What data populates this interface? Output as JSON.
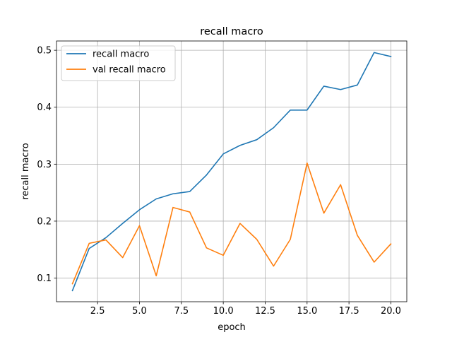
{
  "chart_data": {
    "type": "line",
    "title": "recall macro",
    "xlabel": "epoch",
    "ylabel": "recall macro",
    "xlim": [
      0.05,
      20.95
    ],
    "ylim": [
      0.0585,
      0.5163
    ],
    "grid": true,
    "legend_position": "top-left",
    "x_ticks": [
      2.5,
      5.0,
      7.5,
      10.0,
      12.5,
      15.0,
      17.5,
      20.0
    ],
    "x_tick_labels": [
      "2.5",
      "5.0",
      "7.5",
      "10.0",
      "12.5",
      "15.0",
      "17.5",
      "20.0"
    ],
    "y_ticks": [
      0.1,
      0.2,
      0.3,
      0.4,
      0.5
    ],
    "y_tick_labels": [
      "0.1",
      "0.2",
      "0.3",
      "0.4",
      "0.5"
    ],
    "x": [
      1,
      2,
      3,
      4,
      5,
      6,
      7,
      8,
      9,
      10,
      11,
      12,
      13,
      14,
      15,
      16,
      17,
      18,
      19,
      20
    ],
    "series": [
      {
        "name": "recall macro",
        "color": "#1f77b4",
        "values": [
          0.078,
          0.152,
          0.171,
          0.196,
          0.22,
          0.239,
          0.248,
          0.252,
          0.281,
          0.318,
          0.333,
          0.343,
          0.364,
          0.395,
          0.395,
          0.437,
          0.431,
          0.439,
          0.496,
          0.489
        ]
      },
      {
        "name": "val recall macro",
        "color": "#ff7f0e",
        "values": [
          0.09,
          0.161,
          0.167,
          0.136,
          0.192,
          0.104,
          0.224,
          0.216,
          0.153,
          0.14,
          0.196,
          0.168,
          0.121,
          0.168,
          0.302,
          0.214,
          0.264,
          0.175,
          0.128,
          0.16
        ]
      }
    ]
  }
}
